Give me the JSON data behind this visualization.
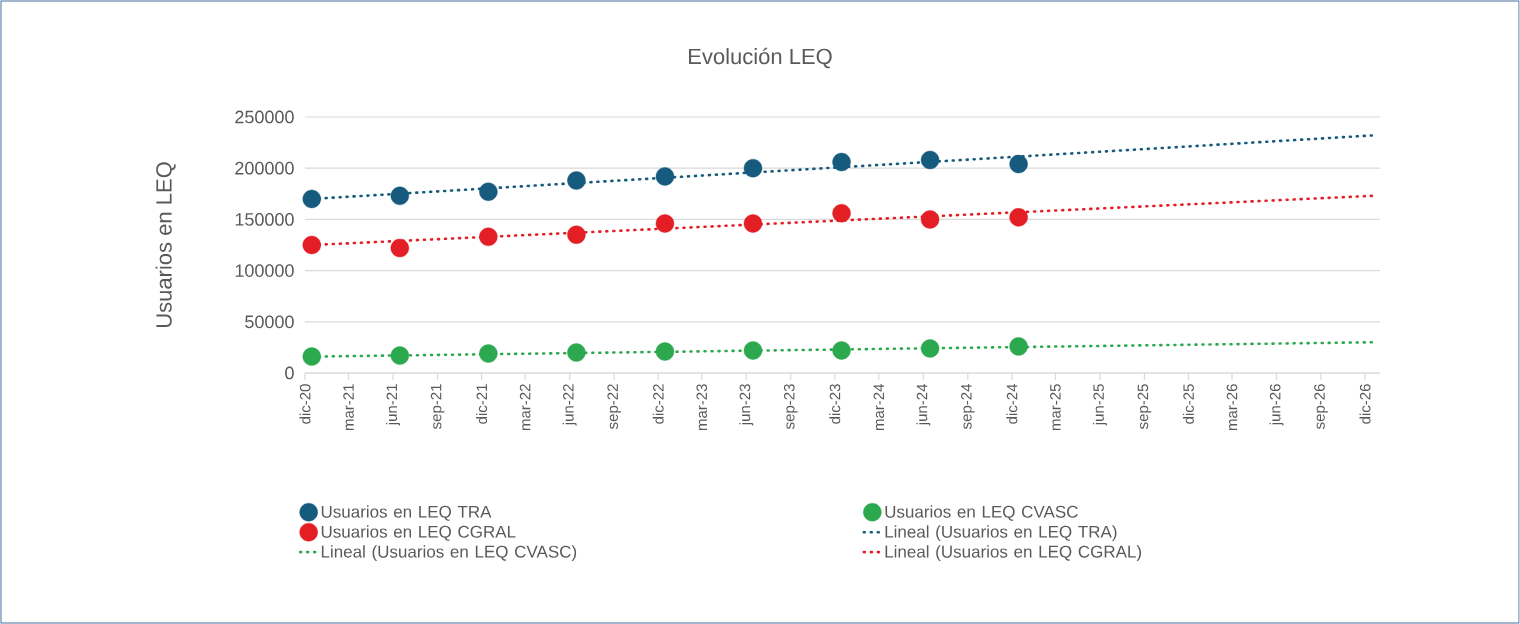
{
  "chart_data": {
    "type": "scatter",
    "title": "Evolución LEQ",
    "ylabel": "Usuarios en LEQ",
    "x": [
      "2020-12-15",
      "2021-06-15",
      "2021-12-15",
      "2022-06-15",
      "2022-12-15",
      "2023-06-15",
      "2023-12-15",
      "2024-06-15",
      "2024-12-15"
    ],
    "series": [
      {
        "name": "Usuarios en LEQ TRA",
        "marker": "circle",
        "color": "#165a7e",
        "values": [
          170000,
          173000,
          177000,
          188000,
          192000,
          200000,
          206000,
          208000,
          204000
        ]
      },
      {
        "name": "Usuarios en LEQ CVASC",
        "marker": "circle",
        "color": "#2ca84f",
        "values": [
          16000,
          17000,
          19000,
          20000,
          21000,
          22000,
          22000,
          24000,
          26000
        ]
      },
      {
        "name": "Usuarios en LEQ CGRAL",
        "marker": "circle",
        "color": "#e31e24",
        "values": [
          125000,
          122000,
          133000,
          135000,
          146000,
          146000,
          156000,
          150000,
          152000
        ]
      },
      {
        "name": "Lineal (Usuarios en LEQ TRA)",
        "type": "line",
        "marker": "none",
        "color": "#165a7e",
        "x": [
          "2020-12-15",
          "2026-12-15"
        ],
        "values": [
          170000,
          232000
        ]
      },
      {
        "name": "Lineal (Usuarios en LEQ CVASC)",
        "type": "line",
        "marker": "none",
        "color": "#2ca84f",
        "x": [
          "2020-12-15",
          "2026-12-15"
        ],
        "values": [
          16000,
          30000
        ]
      },
      {
        "name": "Lineal (Usuarios en LEQ CGRAL)",
        "type": "line",
        "marker": "none",
        "color": "#e31e24",
        "x": [
          "2020-12-15",
          "2026-12-15"
        ],
        "values": [
          125000,
          173000
        ]
      }
    ],
    "xlim": [
      "2020-12-01",
      "2027-01-01"
    ],
    "xticks": [
      {
        "value": "2020-12",
        "label": "dic-20"
      },
      {
        "value": "2021-03",
        "label": "mar-21"
      },
      {
        "value": "2021-06",
        "label": "jun-21"
      },
      {
        "value": "2021-09",
        "label": "sep-21"
      },
      {
        "value": "2021-12",
        "label": "dic-21"
      },
      {
        "value": "2022-03",
        "label": "mar-22"
      },
      {
        "value": "2022-06",
        "label": "jun-22"
      },
      {
        "value": "2022-09",
        "label": "sep-22"
      },
      {
        "value": "2022-12",
        "label": "dic-22"
      },
      {
        "value": "2023-03",
        "label": "mar-23"
      },
      {
        "value": "2023-06",
        "label": "jun-23"
      },
      {
        "value": "2023-09",
        "label": "sep-23"
      },
      {
        "value": "2023-12",
        "label": "dic-23"
      },
      {
        "value": "2024-03",
        "label": "mar-24"
      },
      {
        "value": "2024-06",
        "label": "jun-24"
      },
      {
        "value": "2024-09",
        "label": "sep-24"
      },
      {
        "value": "2024-12",
        "label": "dic-24"
      },
      {
        "value": "2025-03",
        "label": "mar-25"
      },
      {
        "value": "2025-06",
        "label": "jun-25"
      },
      {
        "value": "2025-09",
        "label": "sep-25"
      },
      {
        "value": "2025-12",
        "label": "dic-25"
      },
      {
        "value": "2026-03",
        "label": "mar-26"
      },
      {
        "value": "2026-06",
        "label": "jun-26"
      },
      {
        "value": "2026-09",
        "label": "sep-26"
      },
      {
        "value": "2026-12",
        "label": "dic-26"
      }
    ],
    "ylim": [
      0,
      250000
    ],
    "yticks": [
      0,
      50000,
      100000,
      150000,
      200000,
      250000
    ],
    "grid": "y",
    "legend": "bottom",
    "line_style": "dotted"
  }
}
